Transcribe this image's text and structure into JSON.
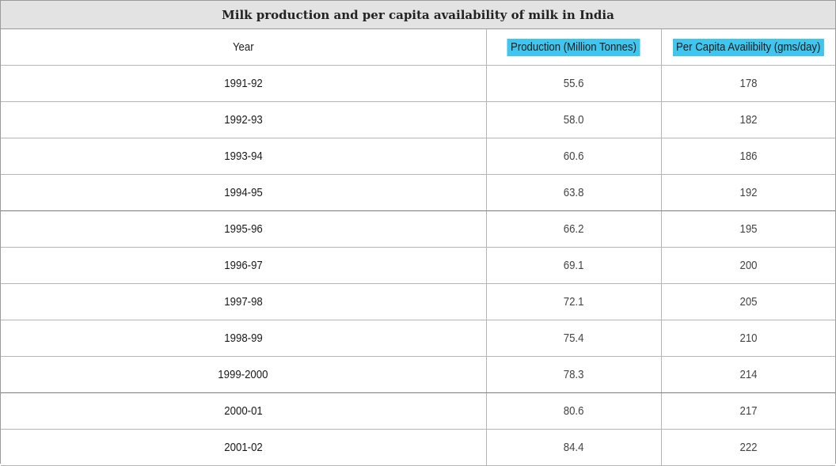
{
  "chart_data": {
    "type": "table",
    "title": "Milk production and per capita availability of milk in India",
    "columns": [
      "Year",
      "Production (Million Tonnes)",
      "Per Capita Availibilty (gms/day)"
    ],
    "rows": [
      [
        "1991-92",
        "55.6",
        "178"
      ],
      [
        "1992-93",
        "58.0",
        "182"
      ],
      [
        "1993-94",
        "60.6",
        "186"
      ],
      [
        "1994-95",
        "63.8",
        "192"
      ],
      [
        "1995-96",
        "66.2",
        "195"
      ],
      [
        "1996-97",
        "69.1",
        "200"
      ],
      [
        "1997-98",
        "72.1",
        "205"
      ],
      [
        "1998-99",
        "75.4",
        "210"
      ],
      [
        "1999-2000",
        "78.3",
        "214"
      ],
      [
        "2000-01",
        "80.6",
        "217"
      ],
      [
        "2001-02",
        "84.4",
        "222"
      ]
    ],
    "header_highlight_color": "#3fc6ee",
    "title_background": "#e3e3e3"
  }
}
